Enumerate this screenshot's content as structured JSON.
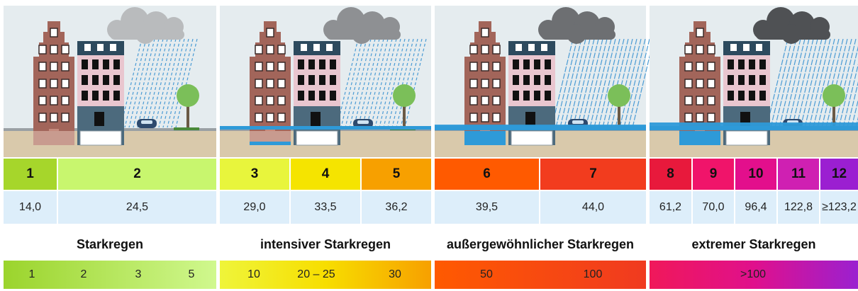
{
  "levels": [
    {
      "number": "1",
      "value": "14,0"
    },
    {
      "number": "2",
      "value": "24,5"
    },
    {
      "number": "3",
      "value": "29,0"
    },
    {
      "number": "4",
      "value": "33,5"
    },
    {
      "number": "5",
      "value": "36,2"
    },
    {
      "number": "6",
      "value": "39,5"
    },
    {
      "number": "7",
      "value": "44,0"
    },
    {
      "number": "8",
      "value": "61,2"
    },
    {
      "number": "9",
      "value": "70,0"
    },
    {
      "number": "10",
      "value": "96,4"
    },
    {
      "number": "11",
      "value": "122,8"
    },
    {
      "number": "12",
      "value": "≥123,2"
    }
  ],
  "categories": [
    {
      "label": "Starkregen",
      "scale": [
        "1",
        "2",
        "3",
        "5"
      ]
    },
    {
      "label": "intensiver Starkregen",
      "scale": [
        "10",
        "20 – 25",
        "30"
      ]
    },
    {
      "label": "außergewöhnlicher Starkregen",
      "scale": [
        "50",
        "100"
      ]
    },
    {
      "label": "extremer Starkregen",
      "scale": [
        ">100"
      ]
    }
  ]
}
